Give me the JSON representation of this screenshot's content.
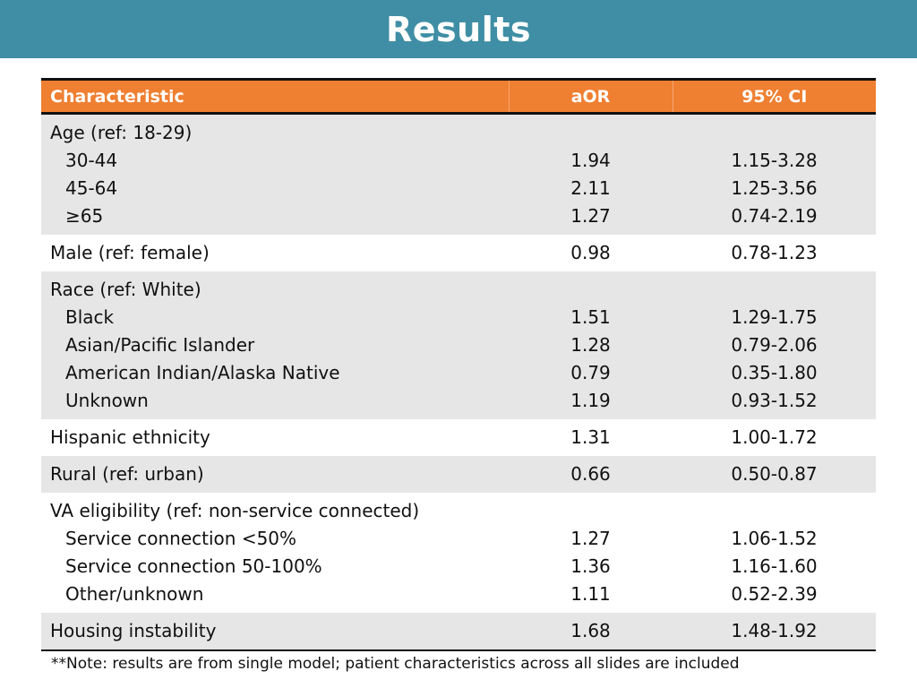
{
  "header": {
    "title": "Results"
  },
  "table": {
    "columns": [
      "Characteristic",
      "aOR",
      "95% CI"
    ],
    "groups": [
      {
        "label": "Age (ref: 18-29)",
        "rows": [
          {
            "label": "30-44",
            "aor": "1.94",
            "ci": "1.15-3.28"
          },
          {
            "label": "45-64",
            "aor": "2.11",
            "ci": "1.25-3.56"
          },
          {
            "label": "≥65",
            "aor": "1.27",
            "ci": "0.74-2.19"
          }
        ]
      },
      {
        "label": "Male (ref: female)",
        "aor": "0.98",
        "ci": "0.78-1.23"
      },
      {
        "label": "Race (ref: White)",
        "rows": [
          {
            "label": "Black",
            "aor": "1.51",
            "ci": "1.29-1.75"
          },
          {
            "label": "Asian/Pacific Islander",
            "aor": "1.28",
            "ci": "0.79-2.06"
          },
          {
            "label": "American Indian/Alaska Native",
            "aor": "0.79",
            "ci": "0.35-1.80"
          },
          {
            "label": "Unknown",
            "aor": "1.19",
            "ci": "0.93-1.52"
          }
        ]
      },
      {
        "label": "Hispanic ethnicity",
        "aor": "1.31",
        "ci": "1.00-1.72"
      },
      {
        "label": "Rural (ref: urban)",
        "aor": "0.66",
        "ci": "0.50-0.87"
      },
      {
        "label": "VA eligibility (ref: non-service connected)",
        "rows": [
          {
            "label": "Service connection <50%",
            "aor": "1.27",
            "ci": "1.06-1.52"
          },
          {
            "label": "Service connection 50-100%",
            "aor": "1.36",
            "ci": "1.16-1.60"
          },
          {
            "label": "Other/unknown",
            "aor": "1.11",
            "ci": "0.52-2.39"
          }
        ]
      },
      {
        "label": "Housing instability",
        "aor": "1.68",
        "ci": "1.48-1.92"
      }
    ]
  },
  "footer": {
    "note": "**Note: results are from single model; patient characteristics across all slides are included"
  },
  "colors": {
    "title_bar": "#3f8ea5",
    "header_row": "#ef7f31",
    "shaded_row": "#e6e6e6"
  }
}
